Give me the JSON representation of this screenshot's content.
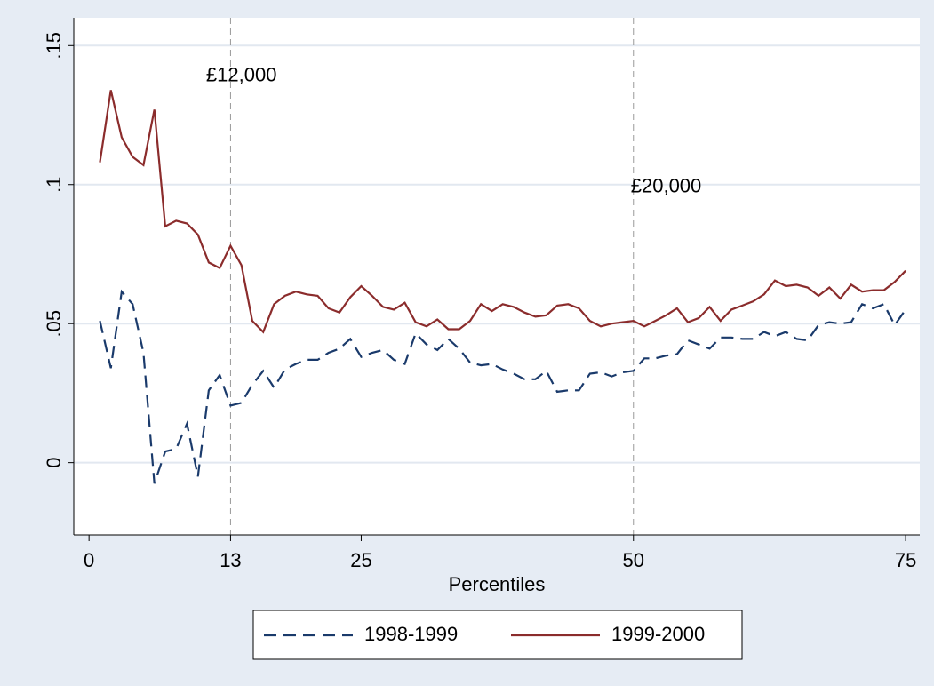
{
  "chart_data": {
    "type": "line",
    "x": [
      1,
      2,
      3,
      4,
      5,
      6,
      7,
      8,
      9,
      10,
      11,
      12,
      13,
      14,
      15,
      16,
      17,
      18,
      19,
      20,
      21,
      22,
      23,
      24,
      25,
      26,
      27,
      28,
      29,
      30,
      31,
      32,
      33,
      34,
      35,
      36,
      37,
      38,
      39,
      40,
      41,
      42,
      43,
      44,
      45,
      46,
      47,
      48,
      49,
      50,
      51,
      52,
      53,
      54,
      55,
      56,
      57,
      58,
      59,
      60,
      61,
      62,
      63,
      64,
      65,
      66,
      67,
      68,
      69,
      70,
      71,
      72,
      73,
      74,
      75
    ],
    "series": [
      {
        "name": "1998-1999",
        "color": "#1a3a6b",
        "dash": true,
        "values": [
          0.051,
          0.034,
          0.0615,
          0.057,
          0.0395,
          -0.0075,
          0.004,
          0.005,
          0.014,
          -0.005,
          0.026,
          0.0315,
          0.0205,
          0.0215,
          0.028,
          0.033,
          0.027,
          0.0335,
          0.0355,
          0.037,
          0.037,
          0.0395,
          0.041,
          0.0445,
          0.038,
          0.0395,
          0.0405,
          0.037,
          0.0355,
          0.0465,
          0.0425,
          0.0405,
          0.0445,
          0.041,
          0.036,
          0.035,
          0.0355,
          0.0335,
          0.032,
          0.03,
          0.03,
          0.033,
          0.0255,
          0.026,
          0.026,
          0.032,
          0.0325,
          0.031,
          0.0325,
          0.033,
          0.0375,
          0.0375,
          0.0385,
          0.039,
          0.044,
          0.0425,
          0.041,
          0.045,
          0.045,
          0.0445,
          0.0445,
          0.047,
          0.0455,
          0.047,
          0.0445,
          0.044,
          0.0495,
          0.0505,
          0.05,
          0.0505,
          0.057,
          0.0555,
          0.057,
          0.0495,
          0.055
        ]
      },
      {
        "name": "1999-2000",
        "color": "#8b2c2c",
        "dash": false,
        "values": [
          0.108,
          0.134,
          0.117,
          0.11,
          0.107,
          0.127,
          0.085,
          0.087,
          0.086,
          0.082,
          0.072,
          0.07,
          0.078,
          0.071,
          0.051,
          0.047,
          0.057,
          0.06,
          0.0615,
          0.0605,
          0.06,
          0.0555,
          0.054,
          0.0595,
          0.0635,
          0.06,
          0.056,
          0.055,
          0.0575,
          0.0505,
          0.049,
          0.0515,
          0.048,
          0.048,
          0.051,
          0.057,
          0.0545,
          0.057,
          0.056,
          0.054,
          0.0525,
          0.053,
          0.0565,
          0.057,
          0.0555,
          0.051,
          0.049,
          0.05,
          0.0505,
          0.051,
          0.049,
          0.051,
          0.053,
          0.0555,
          0.0505,
          0.052,
          0.056,
          0.051,
          0.055,
          0.0565,
          0.058,
          0.0605,
          0.0655,
          0.0635,
          0.064,
          0.063,
          0.06,
          0.063,
          0.059,
          0.064,
          0.0615,
          0.062,
          0.062,
          0.065,
          0.069
        ]
      }
    ],
    "x_label": "Percentiles",
    "xlim": [
      -1.4,
      76.3
    ],
    "xticks": [
      0,
      13,
      25,
      50,
      75
    ],
    "ylim": [
      -0.026,
      0.16
    ],
    "yticks": [
      0,
      {
        "value": 0.05,
        "label": ".05"
      },
      {
        "value": 0.1,
        "label": ".1"
      },
      {
        "value": 0.15,
        "label": ".15"
      }
    ],
    "grid": true,
    "xlines": [
      13,
      50
    ],
    "annotations": [
      {
        "x": 14,
        "y": 0.139,
        "text": "£12,000"
      },
      {
        "x": 53,
        "y": 0.099,
        "text": "£20,000"
      }
    ],
    "legend": "bottom"
  }
}
